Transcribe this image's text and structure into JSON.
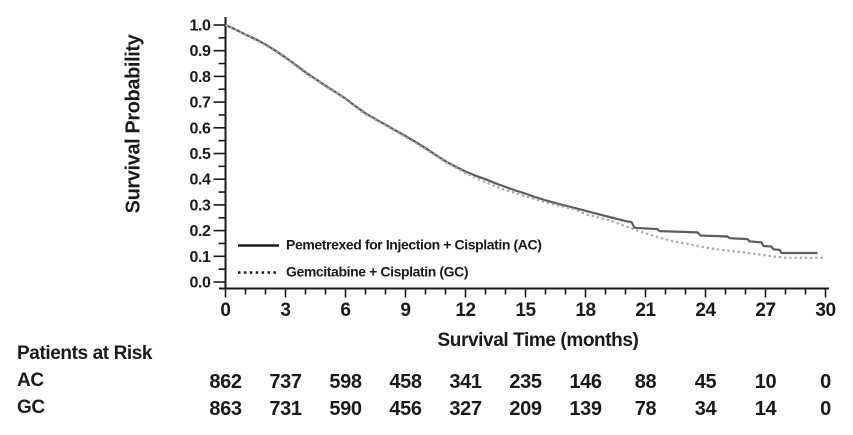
{
  "chart_data": {
    "type": "line",
    "subtype": "kaplan-meier-step-curve",
    "title": "",
    "xlabel": "Survival Time (months)",
    "ylabel": "Survival Probability",
    "grid": false,
    "legend_position": "inside-lower-left",
    "text_color": "#1a1a1a",
    "x_axis": {
      "min": 0,
      "max": 30,
      "major_step": 3,
      "minor_step": 1,
      "tick_labels": [
        "0",
        "3",
        "6",
        "9",
        "12",
        "15",
        "18",
        "21",
        "24",
        "27",
        "30"
      ]
    },
    "y_axis": {
      "min": 0.0,
      "max": 1.0,
      "major_step": 0.1,
      "minor_step": 0.05,
      "tick_labels": [
        "0.0",
        "0.1",
        "0.2",
        "0.3",
        "0.4",
        "0.5",
        "0.6",
        "0.7",
        "0.8",
        "0.9",
        "1.0"
      ]
    },
    "series": [
      {
        "name": "Pemetrexed for Injection + Cisplatin (AC)",
        "short_name": "AC",
        "line_style": "solid",
        "color": "#5e5e5e",
        "legend_swatch_color": "#1a1a1a",
        "points": [
          [
            0,
            1.0
          ],
          [
            0.3,
            0.99
          ],
          [
            1,
            0.963
          ],
          [
            1.5,
            0.945
          ],
          [
            2,
            0.924
          ],
          [
            2.5,
            0.9
          ],
          [
            3,
            0.874
          ],
          [
            3.5,
            0.845
          ],
          [
            4,
            0.816
          ],
          [
            4.5,
            0.79
          ],
          [
            5,
            0.764
          ],
          [
            5.5,
            0.739
          ],
          [
            6,
            0.714
          ],
          [
            6.5,
            0.684
          ],
          [
            7,
            0.656
          ],
          [
            7.5,
            0.634
          ],
          [
            8,
            0.612
          ],
          [
            8.5,
            0.59
          ],
          [
            9,
            0.568
          ],
          [
            9.5,
            0.545
          ],
          [
            10,
            0.521
          ],
          [
            10.5,
            0.495
          ],
          [
            11,
            0.47
          ],
          [
            11.5,
            0.449
          ],
          [
            12,
            0.43
          ],
          [
            12.5,
            0.414
          ],
          [
            13,
            0.4
          ],
          [
            13.5,
            0.384
          ],
          [
            14,
            0.37
          ],
          [
            14.5,
            0.356
          ],
          [
            15,
            0.344
          ],
          [
            15.5,
            0.33
          ],
          [
            16,
            0.318
          ],
          [
            16.5,
            0.307
          ],
          [
            17,
            0.297
          ],
          [
            17.5,
            0.287
          ],
          [
            18,
            0.277
          ],
          [
            18.5,
            0.267
          ],
          [
            19,
            0.257
          ],
          [
            19.5,
            0.247
          ],
          [
            20,
            0.237
          ],
          [
            20.3,
            0.233
          ],
          [
            20.45,
            0.211
          ],
          [
            21.6,
            0.206
          ],
          [
            21.7,
            0.198
          ],
          [
            23.6,
            0.193
          ],
          [
            23.75,
            0.181
          ],
          [
            25.1,
            0.177
          ],
          [
            25.2,
            0.171
          ],
          [
            26.1,
            0.167
          ],
          [
            26.2,
            0.158
          ],
          [
            26.8,
            0.154
          ],
          [
            26.9,
            0.14
          ],
          [
            27.3,
            0.138
          ],
          [
            27.4,
            0.127
          ],
          [
            27.7,
            0.125
          ],
          [
            27.8,
            0.113
          ],
          [
            29.6,
            0.113
          ]
        ]
      },
      {
        "name": "Gemcitabine + Cisplatin (GC)",
        "short_name": "GC",
        "line_style": "dotted",
        "color": "#a8a8a8",
        "legend_swatch_color": "#1a1a1a",
        "points": [
          [
            0,
            1.0
          ],
          [
            0.3,
            0.988
          ],
          [
            1,
            0.962
          ],
          [
            1.5,
            0.942
          ],
          [
            2,
            0.921
          ],
          [
            2.5,
            0.897
          ],
          [
            3,
            0.871
          ],
          [
            3.5,
            0.842
          ],
          [
            4,
            0.812
          ],
          [
            4.5,
            0.787
          ],
          [
            5,
            0.761
          ],
          [
            5.5,
            0.737
          ],
          [
            6,
            0.711
          ],
          [
            6.5,
            0.681
          ],
          [
            7,
            0.652
          ],
          [
            7.5,
            0.631
          ],
          [
            8,
            0.609
          ],
          [
            8.5,
            0.587
          ],
          [
            9,
            0.564
          ],
          [
            9.5,
            0.541
          ],
          [
            10,
            0.517
          ],
          [
            10.5,
            0.492
          ],
          [
            11,
            0.467
          ],
          [
            11.5,
            0.446
          ],
          [
            12,
            0.424
          ],
          [
            12.5,
            0.406
          ],
          [
            13,
            0.388
          ],
          [
            13.5,
            0.372
          ],
          [
            14,
            0.358
          ],
          [
            14.5,
            0.346
          ],
          [
            15,
            0.334
          ],
          [
            15.5,
            0.322
          ],
          [
            16,
            0.31
          ],
          [
            16.5,
            0.3
          ],
          [
            17,
            0.291
          ],
          [
            17.5,
            0.281
          ],
          [
            18,
            0.264
          ],
          [
            18.5,
            0.254
          ],
          [
            19,
            0.244
          ],
          [
            19.5,
            0.232
          ],
          [
            20,
            0.217
          ],
          [
            20.5,
            0.203
          ],
          [
            21,
            0.19
          ],
          [
            21.5,
            0.177
          ],
          [
            22,
            0.166
          ],
          [
            22.5,
            0.157
          ],
          [
            23,
            0.15
          ],
          [
            23.5,
            0.142
          ],
          [
            24,
            0.134
          ],
          [
            24.5,
            0.128
          ],
          [
            25,
            0.123
          ],
          [
            25.5,
            0.119
          ],
          [
            26,
            0.114
          ],
          [
            26.5,
            0.109
          ],
          [
            27,
            0.104
          ],
          [
            27.5,
            0.099
          ],
          [
            28,
            0.094
          ],
          [
            29.9,
            0.094
          ]
        ]
      }
    ],
    "risk_table": {
      "title": "Patients at Risk",
      "time_points": [
        0,
        3,
        6,
        9,
        12,
        15,
        18,
        21,
        24,
        27,
        30
      ],
      "rows": [
        {
          "label": "AC",
          "counts": [
            862,
            737,
            598,
            458,
            341,
            235,
            146,
            88,
            45,
            10,
            0
          ]
        },
        {
          "label": "GC",
          "counts": [
            863,
            731,
            590,
            456,
            327,
            209,
            139,
            78,
            34,
            14,
            0
          ]
        }
      ]
    }
  }
}
